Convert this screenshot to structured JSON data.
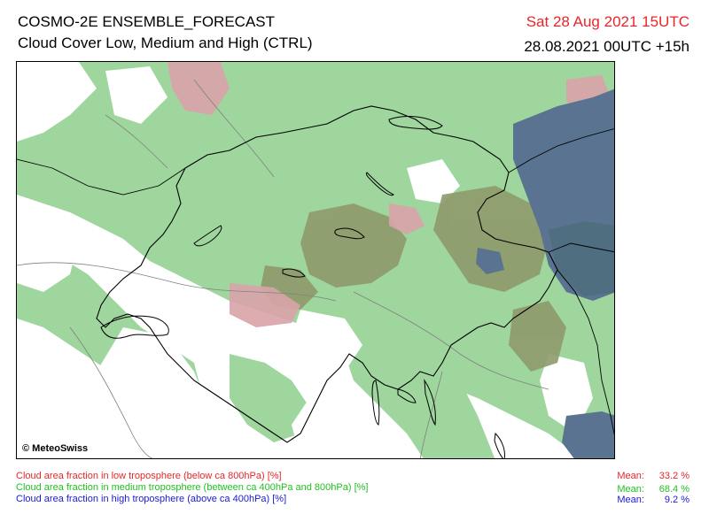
{
  "header": {
    "title_line1": "COSMO-2E ENSEMBLE_FORECAST",
    "title_line2": "Cloud Cover Low, Medium and High (CTRL)",
    "valid_time": "Sat 28 Aug 2021 15UTC",
    "run_time": "28.08.2021 00UTC +15h"
  },
  "map": {
    "credit": "© MeteoSwiss",
    "colors": {
      "low": "#d9a3a8",
      "medium": "#9ed69e",
      "low_medium_overlap": "#8f9a6c",
      "high": "#5a7390",
      "high_medium_overlap": "#4f6e80",
      "border": "#000000",
      "river": "#808080"
    }
  },
  "legend": {
    "low": {
      "label": "Cloud area fraction in low troposphere (below ca 800hPa) [%]",
      "mean_label": "Mean:",
      "mean_value": "33.2 %",
      "color": "#e8262a"
    },
    "medium": {
      "label": "Cloud area fraction in medium troposphere (between ca 400hPa and 800hPa) [%]",
      "mean_label": "Mean:",
      "mean_value": "68.4 %",
      "color": "#22c022"
    },
    "high": {
      "label": "Cloud area fraction in high troposphere (above ca 400hPa) [%]",
      "mean_label": "Mean:",
      "mean_value": "9.2 %",
      "color": "#1a1ad8"
    }
  }
}
